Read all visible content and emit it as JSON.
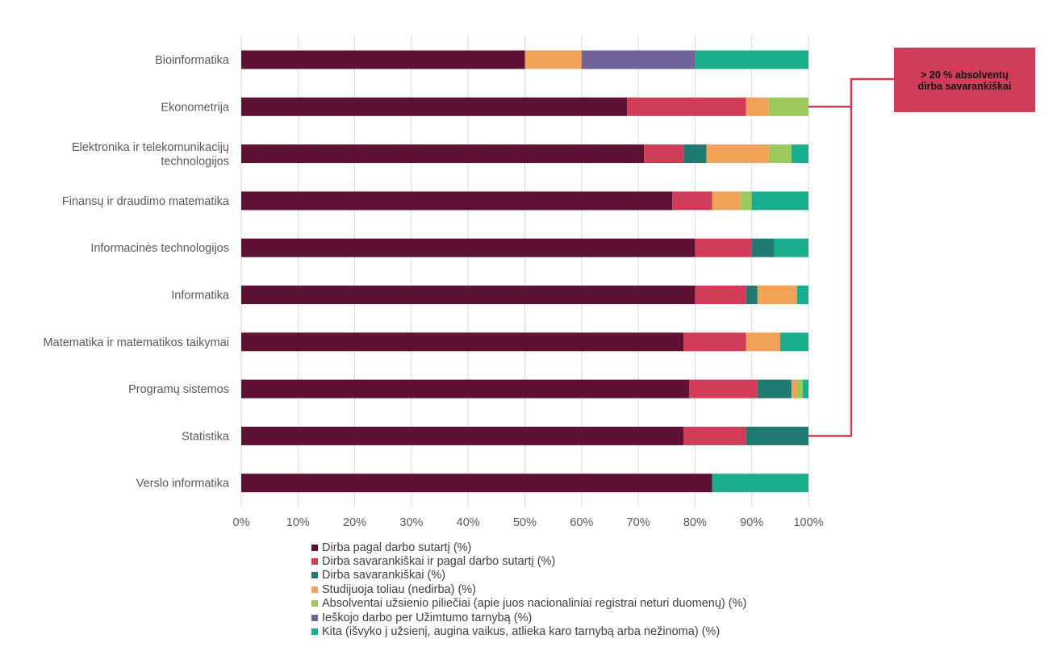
{
  "chart_data": {
    "type": "bar",
    "orientation": "horizontal",
    "stacked": true,
    "normalized": true,
    "categories": [
      "Bioinformatika",
      "Ekonometrija",
      [
        "Elektronika ir telekomunikacijų",
        "technologijos"
      ],
      "Finansų ir draudimo matematika",
      "Informacinės technologijos",
      "Informatika",
      "Matematika ir matematikos taikymai",
      "Programų sistemos",
      "Statistika",
      "Verslo informatika"
    ],
    "series": [
      {
        "name": "Dirba pagal darbo sutartį (%)",
        "color": "#5e1035",
        "values": [
          50,
          68,
          71,
          76,
          80,
          80,
          78,
          79,
          78,
          83
        ]
      },
      {
        "name": "Dirba savarankiškai ir pagal darbo sutartį (%)",
        "color": "#d13d58",
        "values": [
          0,
          21,
          7,
          7,
          10,
          9,
          11,
          12,
          11,
          0
        ]
      },
      {
        "name": "Dirba savarankiškai (%)",
        "color": "#1f7a72",
        "values": [
          0,
          0,
          4,
          0,
          4,
          2,
          0,
          6,
          11,
          0
        ]
      },
      {
        "name": "Studijuoja toliau (nedirba) (%)",
        "color": "#f0a257",
        "values": [
          10,
          4,
          11,
          5,
          0,
          7,
          6,
          1,
          0,
          0
        ]
      },
      {
        "name": "Absolventai užsienio piliečiai (apie juos nacionaliniai registrai neturi duomenų) (%)",
        "color": "#9bc95c",
        "values": [
          0,
          7,
          4,
          2,
          0,
          0,
          0,
          1,
          0,
          0
        ]
      },
      {
        "name": "Ieškojo darbo per Užimtumo tarnybą (%)",
        "color": "#6f6399",
        "values": [
          20,
          0,
          0,
          0,
          0,
          0,
          0,
          0,
          0,
          0
        ]
      },
      {
        "name": "Kita (išvyko į užsienį, augina vaikus, atlieka karo tarnybą arba nežinoma) (%)",
        "color": "#1aae8f",
        "values": [
          20,
          0,
          3,
          10,
          6,
          2,
          5,
          1,
          0,
          17
        ]
      }
    ],
    "xlim": [
      0,
      100
    ],
    "xticks": [
      "0%",
      "10%",
      "20%",
      "30%",
      "40%",
      "50%",
      "60%",
      "70%",
      "80%",
      "90%",
      "100%"
    ],
    "grid": true,
    "legend_position": "bottom",
    "annotation": {
      "lines": [
        "> 20 % absolventų",
        "dirba savarankiškai"
      ],
      "points_to": [
        "Ekonometrija",
        "Statistika"
      ],
      "color": "#d13d58"
    }
  }
}
